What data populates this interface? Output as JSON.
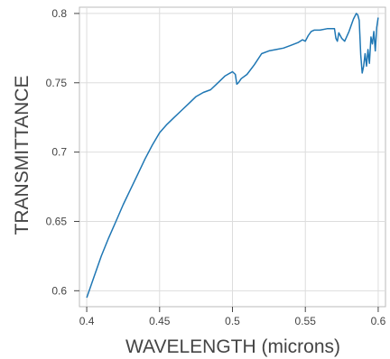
{
  "chart_data": {
    "type": "line",
    "title": "",
    "xlabel": "WAVELENGTH (microns)",
    "ylabel": "TRANSMITTANCE",
    "xlim": [
      0.395,
      0.605
    ],
    "ylim": [
      0.5885,
      0.8045
    ],
    "grid": true,
    "x_ticks": [
      0.4,
      0.45,
      0.5,
      0.55,
      0.6
    ],
    "x_tick_labels": [
      "0.4",
      "0.45",
      "0.5",
      "0.55",
      "0.6"
    ],
    "y_ticks": [
      0.6,
      0.65,
      0.7,
      0.75,
      0.8
    ],
    "y_tick_labels": [
      "0.6",
      "0.65",
      "0.7",
      "0.75",
      "0.8"
    ],
    "line_color": "#1f77b4",
    "series": [
      {
        "x": [
          0.4,
          0.405,
          0.41,
          0.415,
          0.42,
          0.425,
          0.43,
          0.435,
          0.44,
          0.445,
          0.45,
          0.455,
          0.46,
          0.465,
          0.47,
          0.475,
          0.48,
          0.485,
          0.49,
          0.495,
          0.5,
          0.502,
          0.503,
          0.504,
          0.506,
          0.51,
          0.515,
          0.52,
          0.525,
          0.53,
          0.535,
          0.54,
          0.545,
          0.548,
          0.55,
          0.552,
          0.554,
          0.556,
          0.56,
          0.565,
          0.57,
          0.571,
          0.572,
          0.573,
          0.575,
          0.577,
          0.58,
          0.583,
          0.585,
          0.586,
          0.587,
          0.588,
          0.589,
          0.59,
          0.591,
          0.592,
          0.593,
          0.594,
          0.595,
          0.596,
          0.597,
          0.598,
          0.599,
          0.6
        ],
        "y": [
          0.595,
          0.61,
          0.625,
          0.638,
          0.65,
          0.662,
          0.673,
          0.684,
          0.695,
          0.705,
          0.714,
          0.72,
          0.725,
          0.73,
          0.735,
          0.74,
          0.743,
          0.745,
          0.75,
          0.755,
          0.758,
          0.756,
          0.749,
          0.75,
          0.753,
          0.756,
          0.763,
          0.771,
          0.773,
          0.774,
          0.775,
          0.777,
          0.779,
          0.781,
          0.78,
          0.784,
          0.787,
          0.788,
          0.788,
          0.789,
          0.789,
          0.782,
          0.78,
          0.786,
          0.782,
          0.78,
          0.787,
          0.796,
          0.8,
          0.799,
          0.795,
          0.77,
          0.757,
          0.762,
          0.771,
          0.762,
          0.774,
          0.764,
          0.783,
          0.778,
          0.787,
          0.773,
          0.79,
          0.797
        ]
      }
    ]
  }
}
